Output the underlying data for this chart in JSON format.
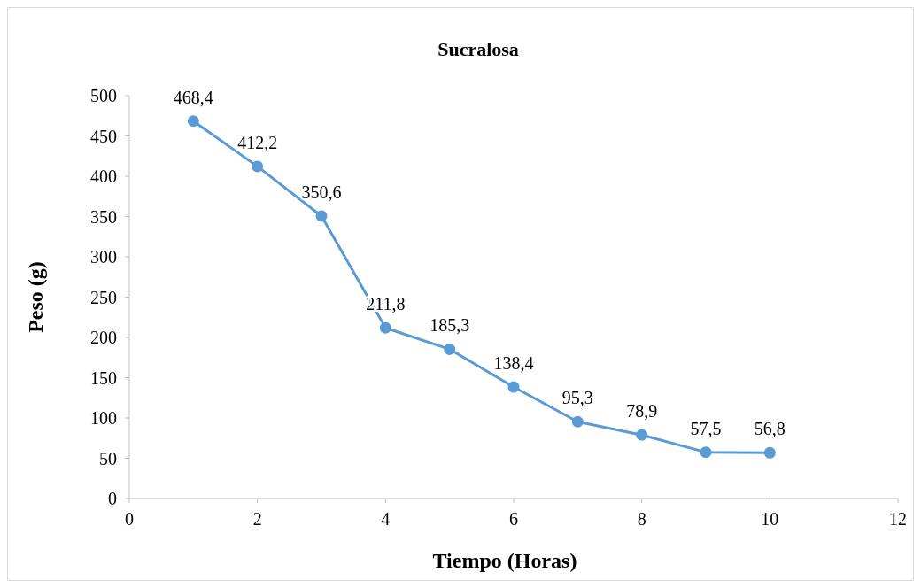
{
  "chart_data": {
    "type": "line",
    "title": "Sucralosa",
    "xlabel": "Tiempo (Horas)",
    "ylabel": "Peso (g)",
    "x": [
      1,
      2,
      3,
      4,
      5,
      6,
      7,
      8,
      9,
      10
    ],
    "series": [
      {
        "color": "#5b9bd5",
        "values": [
          468.4,
          412.2,
          350.6,
          211.8,
          185.3,
          138.4,
          95.3,
          78.9,
          57.5,
          56.8
        ],
        "value_labels": [
          "468,4",
          "412,2",
          "350,6",
          "211,8",
          "185,3",
          "138,4",
          "95,3",
          "78,9",
          "57,5",
          "56,8"
        ]
      }
    ],
    "xlim": [
      0,
      12
    ],
    "xticks": [
      0,
      2,
      4,
      6,
      8,
      10,
      12
    ],
    "ylim": [
      0,
      500
    ],
    "yticks": [
      0,
      50,
      100,
      150,
      200,
      250,
      300,
      350,
      400,
      450,
      500
    ],
    "grid": false,
    "marker": "circle",
    "line_style": "solid"
  }
}
